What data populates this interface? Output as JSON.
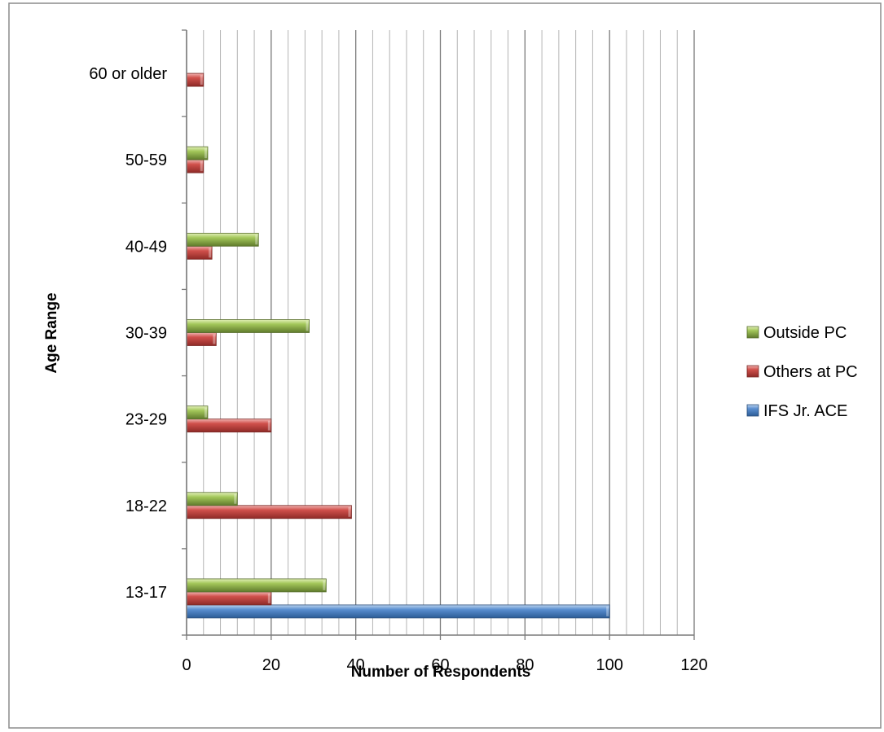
{
  "chart_data": {
    "type": "bar",
    "orientation": "horizontal",
    "categories": [
      "13-17",
      "18-22",
      "23-29",
      "30-39",
      "40-49",
      "50-59",
      "60 or older"
    ],
    "series": [
      {
        "name": "IFS Jr. ACE",
        "color": "#4f81bd",
        "values": [
          100,
          null,
          null,
          null,
          null,
          null,
          null
        ]
      },
      {
        "name": "Others at PC",
        "color": "#c0504d",
        "values": [
          20,
          39,
          20,
          7,
          6,
          4,
          4
        ]
      },
      {
        "name": "Outside PC",
        "color": "#9bbb59",
        "values": [
          33,
          12,
          5,
          29,
          17,
          5,
          null
        ]
      }
    ],
    "xlabel": "Number of Respondents",
    "ylabel": "Age Range",
    "xlim": [
      0,
      120
    ],
    "xticks": [
      0,
      20,
      40,
      60,
      80,
      100,
      120
    ],
    "minor_gridlines": true,
    "legend_position": "right",
    "legend_order": [
      "Outside PC",
      "Others at PC",
      "IFS Jr. ACE"
    ]
  }
}
